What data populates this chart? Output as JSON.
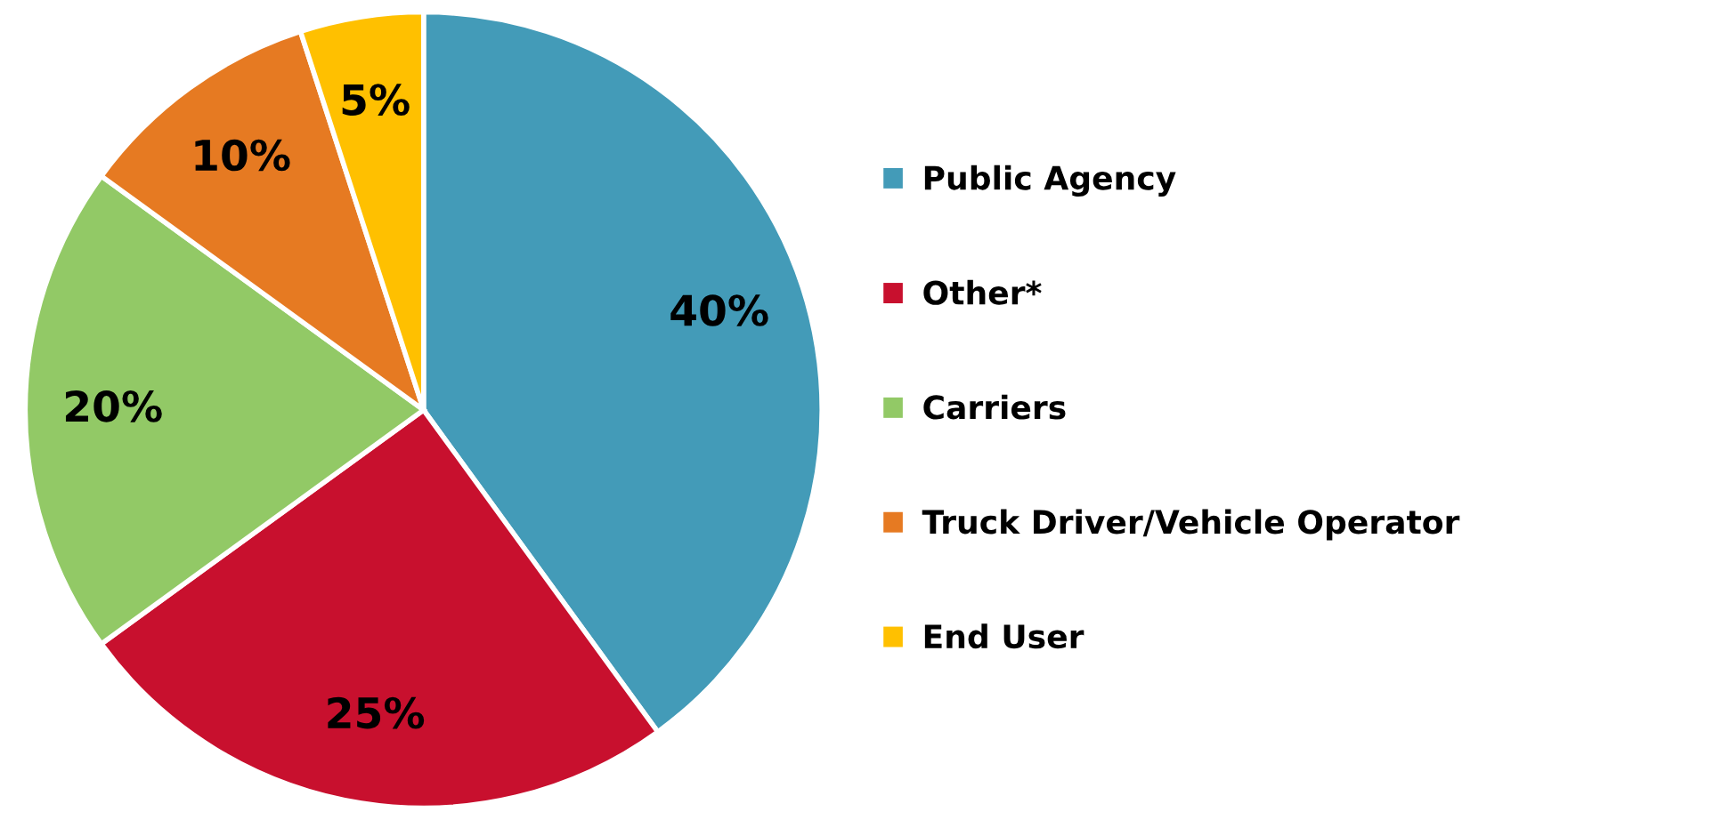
{
  "chart_data": {
    "type": "pie",
    "categories": [
      "Public Agency",
      "Other*",
      "Carriers",
      "Truck Driver/Vehicle Operator",
      "End User"
    ],
    "values": [
      40,
      25,
      20,
      10,
      5
    ],
    "value_labels": [
      "40%",
      "25%",
      "20%",
      "10%",
      "5%"
    ],
    "colors": [
      "#439bb8",
      "#c8102e",
      "#92c966",
      "#e67a22",
      "#ffc000"
    ],
    "legend": "right"
  }
}
